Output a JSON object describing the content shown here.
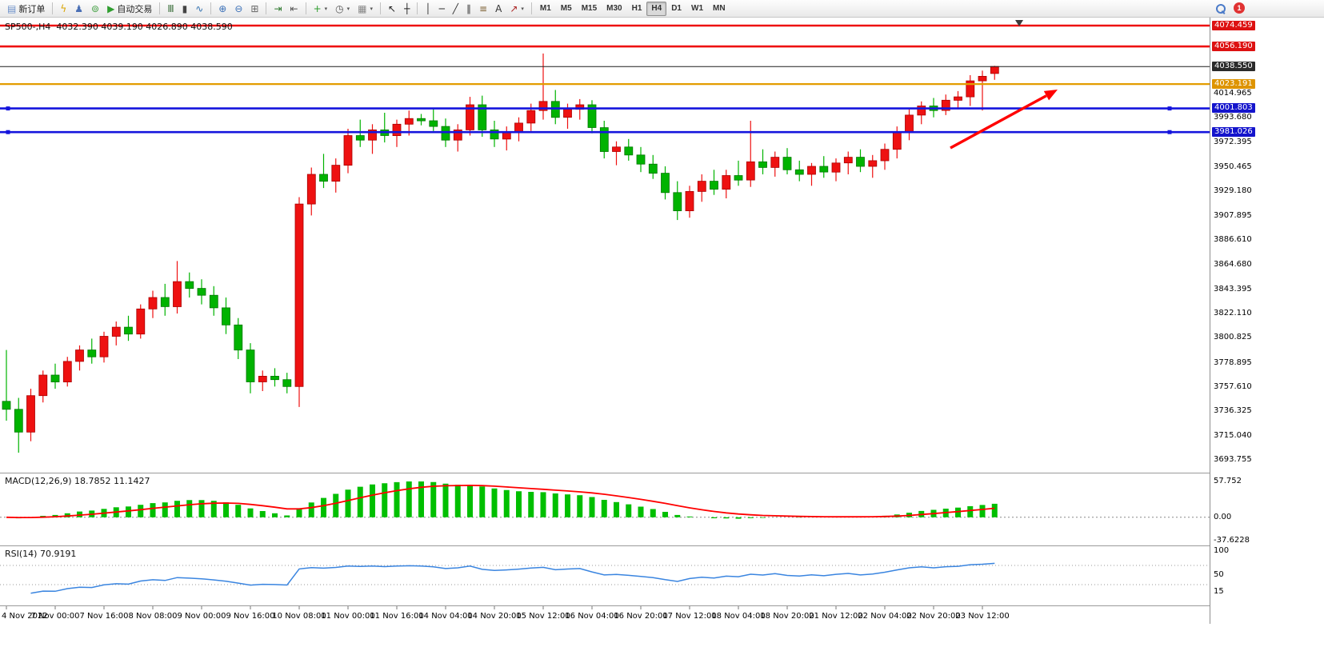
{
  "toolbar": {
    "groups": [
      {
        "items": [
          {
            "name": "new-order-button",
            "glyph": "▤",
            "glyph_color": "#6b8fc9",
            "label": "新订单"
          }
        ]
      },
      {
        "items": [
          {
            "name": "quick-trade-button",
            "glyph": "ϟ",
            "glyph_color": "#d9a400"
          },
          {
            "name": "accounts-button",
            "glyph": "♟",
            "glyph_color": "#4a6fb5"
          },
          {
            "name": "community-button",
            "glyph": "⊚",
            "glyph_color": "#3f9e3f"
          },
          {
            "name": "autotrading-button",
            "glyph": "▶",
            "glyph_color": "#2f9e2f",
            "label": "自动交易"
          }
        ]
      },
      {
        "items": [
          {
            "name": "bar-chart-button",
            "glyph": "Ⅲ",
            "glyph_color": "#356b35"
          },
          {
            "name": "candlestick-chart-button",
            "glyph": "▮",
            "glyph_color": "#444444"
          },
          {
            "name": "line-chart-button",
            "glyph": "∿",
            "glyph_color": "#2f6fb0"
          }
        ]
      },
      {
        "items": [
          {
            "name": "zoom-in-button",
            "glyph": "⊕",
            "glyph_color": "#3a70b8"
          },
          {
            "name": "zoom-out-button",
            "glyph": "⊖",
            "glyph_color": "#3a70b8"
          },
          {
            "name": "tile-windows-button",
            "glyph": "⊞",
            "glyph_color": "#666666"
          }
        ]
      },
      {
        "items": [
          {
            "name": "auto-scroll-button",
            "glyph": "⇥",
            "glyph_color": "#2f7a2f"
          },
          {
            "name": "chart-shift-button",
            "glyph": "⇤",
            "glyph_color": "#555555"
          }
        ]
      },
      {
        "items": [
          {
            "name": "add-indicator-button",
            "glyph": "+",
            "glyph_color": "#2f9e2f",
            "caret": true
          },
          {
            "name": "periods-button",
            "glyph": "◷",
            "glyph_color": "#555555",
            "caret": true
          },
          {
            "name": "templates-button",
            "glyph": "▦",
            "glyph_color": "#888888",
            "caret": true
          }
        ]
      },
      {
        "items": [
          {
            "name": "cursor-button",
            "glyph": "↖",
            "glyph_color": "#222222"
          },
          {
            "name": "crosshair-button",
            "glyph": "┼",
            "glyph_color": "#222222"
          }
        ]
      },
      {
        "items": [
          {
            "name": "vertical-line-button",
            "glyph": "│",
            "glyph_color": "#333333"
          },
          {
            "name": "horizontal-line-button",
            "glyph": "─",
            "glyph_color": "#333333"
          },
          {
            "name": "trendline-button",
            "glyph": "╱",
            "glyph_color": "#333333"
          },
          {
            "name": "channel-button",
            "glyph": "∥",
            "glyph_color": "#333333"
          },
          {
            "name": "fibonacci-button",
            "glyph": "≡",
            "glyph_color": "#7a5c2e"
          },
          {
            "name": "text-button",
            "glyph": "A",
            "glyph_color": "#333333"
          },
          {
            "name": "arrows-button",
            "glyph": "↗",
            "glyph_color": "#aa2222",
            "caret": true
          }
        ]
      }
    ],
    "timeframes": [
      "M1",
      "M5",
      "M15",
      "M30",
      "H1",
      "H4",
      "D1",
      "W1",
      "MN"
    ],
    "active_timeframe": "H4",
    "notification_badge": "1"
  },
  "chart_data": {
    "type": "candlestick",
    "symbol": "SP500-",
    "timeframe": "H4",
    "title": "SP500-,H4  4032.390 4039.190 4026.890 4038.590",
    "ohlc": {
      "open": "4032.390",
      "high": "4039.190",
      "low": "4026.890",
      "close": "4038.590"
    },
    "up_color": "#ee1111",
    "down_color": "#00b300",
    "up_stroke": "#aa0000",
    "down_stroke": "#007700",
    "main_ylim": [
      3682.44,
      4080.07
    ],
    "y_ticks": [
      "4014.965",
      "3993.680",
      "3972.395",
      "3950.465",
      "3929.180",
      "3907.895",
      "3886.610",
      "3864.680",
      "3843.395",
      "3822.110",
      "3800.825",
      "3778.895",
      "3757.610",
      "3736.325",
      "3715.040",
      "3693.755"
    ],
    "price_lines": [
      {
        "price": 4074.459,
        "label": "4074.459",
        "color": "#ee1111",
        "width": 2.6,
        "label_bg": "#dd1111"
      },
      {
        "price": 4056.19,
        "label": "4056.190",
        "color": "#ee1111",
        "width": 2.6,
        "label_bg": "#dd1111"
      },
      {
        "price": 4038.55,
        "label": "4038.550",
        "color": "#1f1f1f",
        "width": 1.0,
        "label_bg": "#2b2b2b"
      },
      {
        "price": 4023.191,
        "label": "4023.191",
        "color": "#e39c00",
        "width": 2.2,
        "label_bg": "#de9400"
      },
      {
        "price": 4001.803,
        "label": "4001.803",
        "color": "#1515dd",
        "width": 2.6,
        "label_bg": "#1414cc",
        "handles": true
      },
      {
        "price": 3981.026,
        "label": "3981.026",
        "color": "#1515dd",
        "width": 2.6,
        "label_bg": "#1414cc",
        "handles": true
      }
    ],
    "candles": [
      [
        3745,
        3790,
        3728,
        3738
      ],
      [
        3738,
        3748,
        3700,
        3718
      ],
      [
        3718,
        3756,
        3710,
        3750
      ],
      [
        3750,
        3772,
        3744,
        3768
      ],
      [
        3768,
        3778,
        3756,
        3762
      ],
      [
        3762,
        3784,
        3758,
        3780
      ],
      [
        3780,
        3794,
        3772,
        3790
      ],
      [
        3790,
        3800,
        3778,
        3784
      ],
      [
        3784,
        3806,
        3779,
        3802
      ],
      [
        3802,
        3815,
        3794,
        3810
      ],
      [
        3810,
        3820,
        3798,
        3804
      ],
      [
        3804,
        3830,
        3800,
        3826
      ],
      [
        3826,
        3842,
        3818,
        3836
      ],
      [
        3836,
        3848,
        3820,
        3828
      ],
      [
        3828,
        3868,
        3822,
        3850
      ],
      [
        3850,
        3858,
        3836,
        3844
      ],
      [
        3844,
        3852,
        3830,
        3838
      ],
      [
        3838,
        3846,
        3820,
        3827
      ],
      [
        3827,
        3836,
        3804,
        3812
      ],
      [
        3812,
        3818,
        3782,
        3790
      ],
      [
        3790,
        3796,
        3752,
        3762
      ],
      [
        3762,
        3772,
        3754,
        3767
      ],
      [
        3767,
        3774,
        3758,
        3764
      ],
      [
        3764,
        3770,
        3752,
        3758
      ],
      [
        3758,
        3924,
        3740,
        3918
      ],
      [
        3918,
        3950,
        3908,
        3944
      ],
      [
        3944,
        3962,
        3932,
        3938
      ],
      [
        3938,
        3958,
        3928,
        3952
      ],
      [
        3952,
        3984,
        3945,
        3978
      ],
      [
        3978,
        3992,
        3968,
        3974
      ],
      [
        3974,
        3988,
        3962,
        3983
      ],
      [
        3983,
        3998,
        3972,
        3978
      ],
      [
        3978,
        3992,
        3968,
        3988
      ],
      [
        3988,
        4000,
        3978,
        3993
      ],
      [
        3993,
        3997,
        3987,
        3991
      ],
      [
        3991,
        4002,
        3982,
        3986
      ],
      [
        3986,
        3993,
        3968,
        3974
      ],
      [
        3974,
        3988,
        3964,
        3983
      ],
      [
        3983,
        4012,
        3978,
        4005
      ],
      [
        4005,
        4013,
        3977,
        3983
      ],
      [
        3983,
        3991,
        3968,
        3975
      ],
      [
        3975,
        3986,
        3965,
        3981
      ],
      [
        3981,
        3994,
        3973,
        3989
      ],
      [
        3989,
        4006,
        3982,
        4000
      ],
      [
        4000,
        4050,
        3992,
        4008
      ],
      [
        4008,
        4018,
        3988,
        3994
      ],
      [
        3994,
        4006,
        3984,
        4001
      ],
      [
        4001,
        4010,
        3992,
        4005
      ],
      [
        4005,
        4009,
        3980,
        3985
      ],
      [
        3985,
        3991,
        3958,
        3964
      ],
      [
        3964,
        3973,
        3952,
        3968
      ],
      [
        3968,
        3975,
        3956,
        3961
      ],
      [
        3961,
        3968,
        3946,
        3953
      ],
      [
        3953,
        3961,
        3940,
        3945
      ],
      [
        3945,
        3951,
        3922,
        3928
      ],
      [
        3928,
        3938,
        3904,
        3912
      ],
      [
        3912,
        3934,
        3906,
        3929
      ],
      [
        3929,
        3944,
        3920,
        3938
      ],
      [
        3938,
        3948,
        3926,
        3931
      ],
      [
        3931,
        3948,
        3923,
        3943
      ],
      [
        3943,
        3956,
        3934,
        3939
      ],
      [
        3939,
        3991,
        3933,
        3955
      ],
      [
        3955,
        3966,
        3944,
        3950
      ],
      [
        3950,
        3964,
        3942,
        3959
      ],
      [
        3959,
        3967,
        3944,
        3948
      ],
      [
        3948,
        3956,
        3938,
        3944
      ],
      [
        3944,
        3954,
        3934,
        3951
      ],
      [
        3951,
        3960,
        3941,
        3946
      ],
      [
        3946,
        3958,
        3938,
        3954
      ],
      [
        3954,
        3964,
        3944,
        3959
      ],
      [
        3959,
        3966,
        3946,
        3951
      ],
      [
        3951,
        3961,
        3941,
        3956
      ],
      [
        3956,
        3971,
        3948,
        3966
      ],
      [
        3966,
        3986,
        3958,
        3981
      ],
      [
        3981,
        4001,
        3974,
        3996
      ],
      [
        3996,
        4008,
        3988,
        4004
      ],
      [
        4004,
        4011,
        3994,
        4000
      ],
      [
        4000,
        4014,
        3996,
        4009
      ],
      [
        4009,
        4017,
        4001,
        4012
      ],
      [
        4012,
        4031,
        4004,
        4026
      ],
      [
        4026,
        4035,
        4000,
        4030
      ],
      [
        4032.39,
        4039.19,
        4026.89,
        4038.59
      ]
    ],
    "x_labels": [
      "4 Nov 2022",
      "7 Nov 00:00",
      "7 Nov 16:00",
      "8 Nov 08:00",
      "9 Nov 00:00",
      "9 Nov 16:00",
      "10 Nov 08:00",
      "11 Nov 00:00",
      "11 Nov 16:00",
      "14 Nov 04:00",
      "14 Nov 20:00",
      "15 Nov 12:00",
      "16 Nov 04:00",
      "16 Nov 20:00",
      "17 Nov 12:00",
      "18 Nov 04:00",
      "18 Nov 20:00",
      "21 Nov 12:00",
      "22 Nov 04:00",
      "22 Nov 20:00",
      "23 Nov 12:00"
    ],
    "x_label_step": 4,
    "macd": {
      "title": "MACD(12,26,9) 18.7852 11.1427",
      "params": [
        12,
        26,
        9
      ],
      "values_text": [
        "18.7852",
        "11.1427"
      ],
      "scale_labels": [
        "57.752",
        "0.00",
        "-37.6228"
      ],
      "scale_values": [
        57.752,
        0,
        -37.6228
      ],
      "hist_color": "#00bf00",
      "signal_color": "#ff0000"
    },
    "rsi": {
      "period": 14,
      "title": "RSI(14) 70.9191",
      "value_text": "70.9191",
      "scale_labels": [
        "100",
        "50",
        "15"
      ],
      "scale_values": [
        100,
        50,
        15
      ],
      "levels": [
        70,
        30
      ],
      "line_color": "#3a85e0"
    },
    "annotations": {
      "trend_arrow": {
        "from": [
          1188,
          163
        ],
        "to": [
          1322,
          90
        ],
        "color": "#ff0000"
      },
      "chart_shift_marker": {
        "x": 1274
      }
    }
  }
}
